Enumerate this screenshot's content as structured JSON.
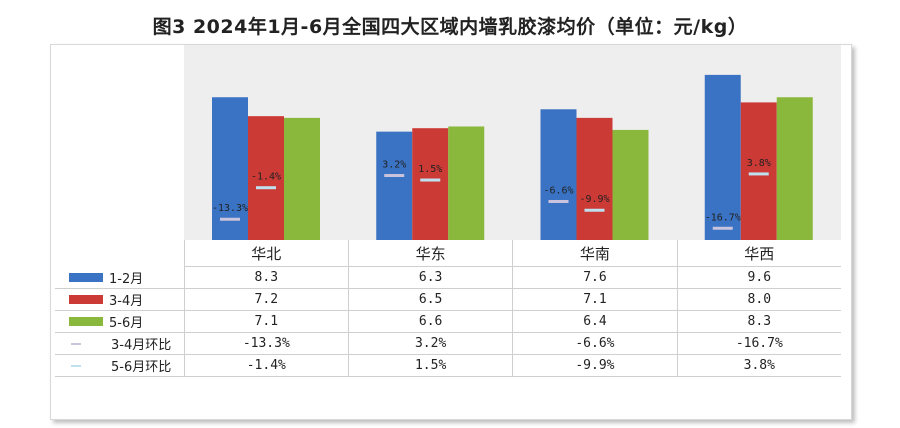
{
  "title": "图3 2024年1月-6月全国四大区域内墙乳胶漆均价（单位：元/kg）",
  "colors": {
    "s1": "#3a73c4",
    "s2": "#cc3a36",
    "s3": "#8ab83c",
    "c1": "#c9c3de",
    "c2": "#bfe0ef"
  },
  "chart_data": {
    "type": "bar",
    "categories": [
      "华北",
      "华东",
      "华南",
      "华西"
    ],
    "series": [
      {
        "name": "1-2月",
        "values": [
          8.3,
          6.3,
          7.6,
          9.6
        ]
      },
      {
        "name": "3-4月",
        "values": [
          7.2,
          6.5,
          7.1,
          8.0
        ]
      },
      {
        "name": "5-6月",
        "values": [
          7.1,
          6.6,
          6.4,
          8.3
        ]
      }
    ],
    "change_series": [
      {
        "name": "3-4月环比",
        "values": [
          -13.3,
          3.2,
          -6.6,
          -16.7
        ],
        "labels": [
          "-13.3%",
          "3.2%",
          "-6.6%",
          "-16.7%"
        ]
      },
      {
        "name": "5-6月环比",
        "values": [
          -1.4,
          1.5,
          -9.9,
          3.8
        ],
        "labels": [
          "-1.4%",
          "1.5%",
          "-9.9%",
          "3.8%"
        ]
      }
    ],
    "value_labels": [
      [
        "8.3",
        "6.3",
        "7.6",
        "9.6"
      ],
      [
        "7.2",
        "6.5",
        "7.1",
        "8.0"
      ],
      [
        "7.1",
        "6.6",
        "6.4",
        "8.3"
      ]
    ],
    "ylim": [
      0,
      10
    ]
  }
}
